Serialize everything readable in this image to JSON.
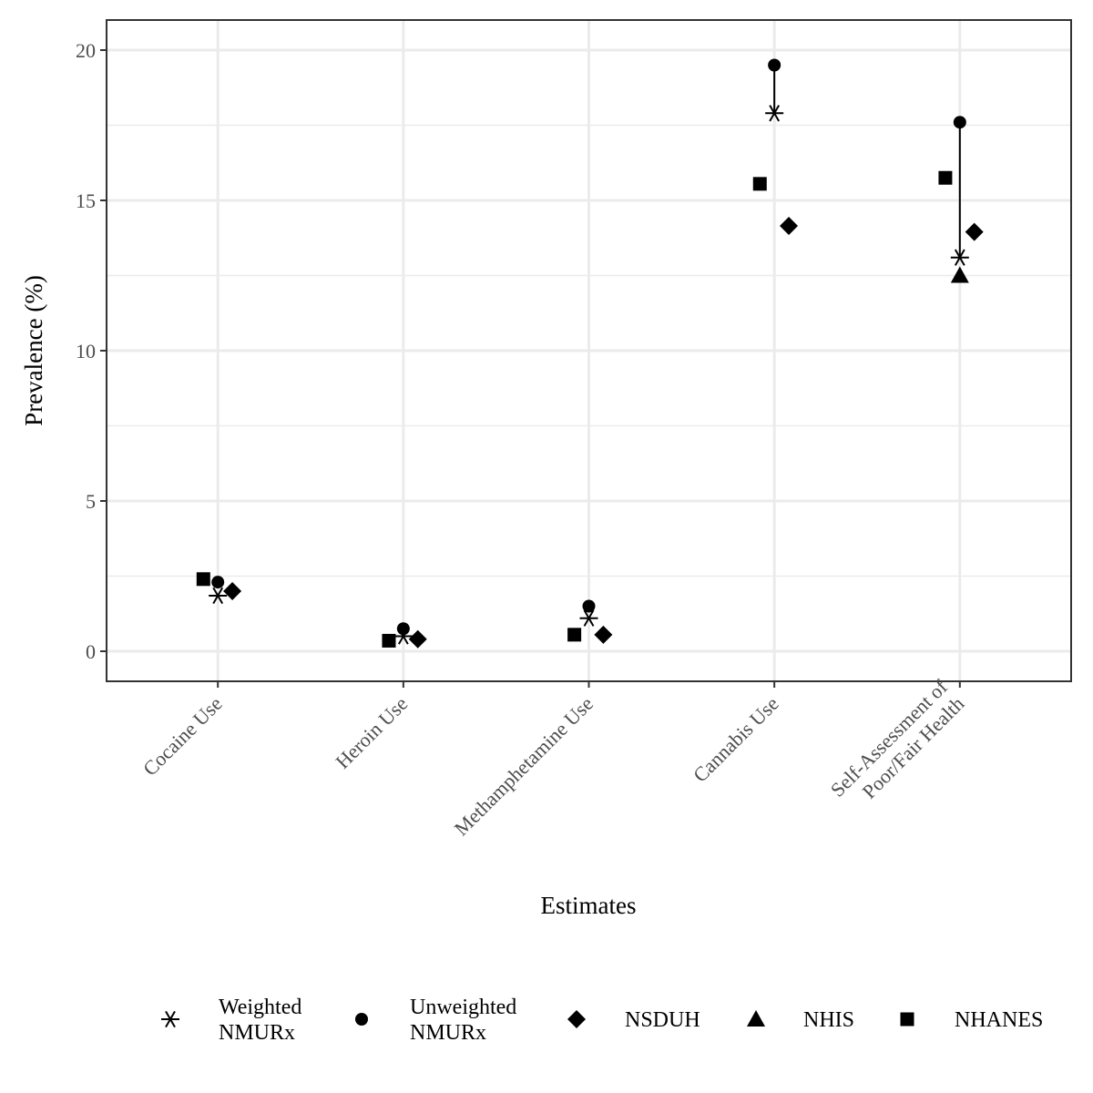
{
  "chart_data": {
    "type": "scatter",
    "xlabel": "Estimates",
    "ylabel": "Prevalence (%)",
    "ylim": [
      -1.0,
      21.0
    ],
    "yticks": [
      0,
      5,
      10,
      15,
      20
    ],
    "grid": true,
    "legend_position": "bottom",
    "categories": [
      [
        "Cocaine Use"
      ],
      [
        "Heroin Use"
      ],
      [
        "Methamphetamine Use"
      ],
      [
        "Cannabis Use"
      ],
      [
        "Self-Assessment of",
        "Poor/Fair Health"
      ]
    ],
    "series": [
      {
        "name": [
          "Weighted",
          "NMURx"
        ],
        "marker": "asterisk",
        "values": [
          1.85,
          0.5,
          1.1,
          17.9,
          13.1
        ]
      },
      {
        "name": [
          "Unweighted",
          "NMURx"
        ],
        "marker": "circle",
        "values": [
          2.3,
          0.75,
          1.5,
          19.5,
          17.6
        ]
      },
      {
        "name": [
          "NSDUH"
        ],
        "marker": "diamond",
        "values": [
          2.0,
          0.4,
          0.55,
          14.15,
          13.95
        ]
      },
      {
        "name": [
          "NHIS"
        ],
        "marker": "triangle",
        "values": [
          null,
          null,
          null,
          null,
          12.5
        ]
      },
      {
        "name": [
          "NHANES"
        ],
        "marker": "square",
        "values": [
          2.4,
          0.35,
          0.55,
          15.55,
          15.75
        ]
      }
    ]
  }
}
